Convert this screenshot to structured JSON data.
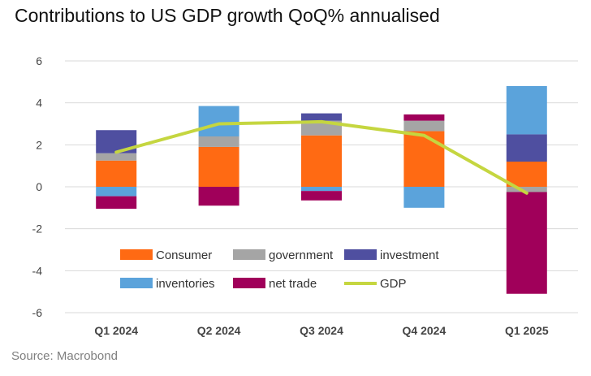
{
  "title": "Contributions to US GDP growth QoQ% annualised",
  "source": "Source: Macrobond",
  "chart_data": {
    "type": "bar",
    "stacked": true,
    "categories": [
      "Q1 2024",
      "Q2 2024",
      "Q3 2024",
      "Q4 2024",
      "Q1 2025"
    ],
    "ylim": [
      -6,
      6
    ],
    "yticks": [
      -6,
      -4,
      -2,
      0,
      2,
      4,
      6
    ],
    "grid": true,
    "legend_position": "bottom-inside",
    "series": [
      {
        "name": "Consumer",
        "color": "#ff6a13",
        "values": [
          1.25,
          1.9,
          2.45,
          2.65,
          1.2
        ]
      },
      {
        "name": "government",
        "color": "#a5a5a5",
        "values": [
          0.35,
          0.5,
          0.7,
          0.5,
          -0.25
        ]
      },
      {
        "name": "investment",
        "color": "#4f4fa0",
        "values": [
          1.1,
          0.0,
          0.35,
          0.0,
          1.3
        ]
      },
      {
        "name": "inventories",
        "color": "#5ba3db",
        "values": [
          -0.45,
          1.45,
          -0.2,
          -1.0,
          2.3
        ]
      },
      {
        "name": "net trade",
        "color": "#a0005a",
        "values": [
          -0.6,
          -0.9,
          -0.45,
          0.3,
          -4.85
        ]
      }
    ],
    "line": {
      "name": "GDP",
      "color": "#c5d640",
      "values": [
        1.65,
        3.0,
        3.1,
        2.45,
        -0.3
      ]
    }
  }
}
